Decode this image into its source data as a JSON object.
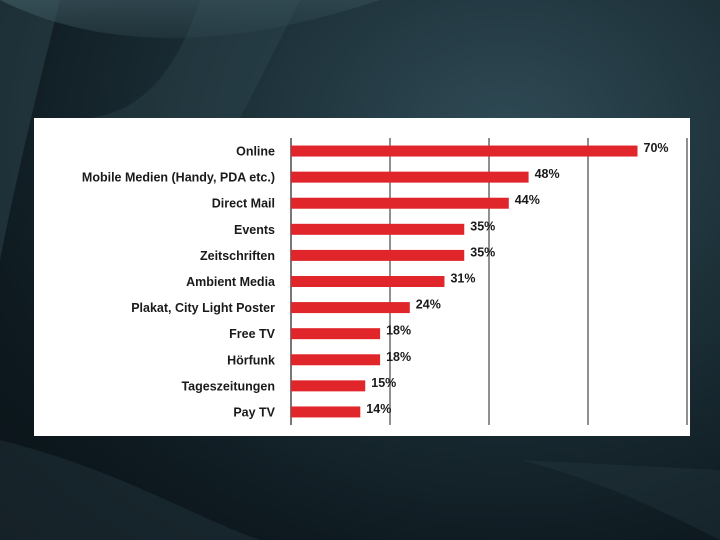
{
  "colors": {
    "bar": "#e0262b",
    "grid": "#555555",
    "panel": "#ffffff"
  },
  "chart_data": {
    "type": "bar",
    "orientation": "horizontal",
    "categories": [
      "Online",
      "Mobile Medien (Handy, PDA etc.)",
      "Direct Mail",
      "Events",
      "Zeitschriften",
      "Ambient Media",
      "Plakat, City Light Poster",
      "Free TV",
      "Hörfunk",
      "Tageszeitungen",
      "Pay TV"
    ],
    "values": [
      70,
      48,
      44,
      35,
      35,
      31,
      24,
      18,
      18,
      15,
      14
    ],
    "value_labels": [
      "70%",
      "48%",
      "44%",
      "35%",
      "35%",
      "31%",
      "24%",
      "18%",
      "18%",
      "15%",
      "14%"
    ],
    "xlim": [
      0,
      80
    ],
    "grid": true,
    "grid_lines_at": [
      0,
      20,
      40,
      60,
      80
    ]
  }
}
